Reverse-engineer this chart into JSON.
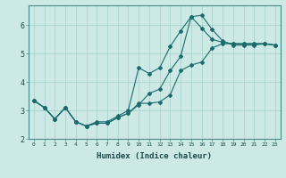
{
  "xlabel": "Humidex (Indice chaleur)",
  "ylabel": "",
  "bg_color": "#cce9e5",
  "line_color": "#1a6b6b",
  "grid_color": "#aad4d0",
  "xlim": [
    -0.5,
    23.5
  ],
  "ylim": [
    2.0,
    6.7
  ],
  "xticks": [
    0,
    1,
    2,
    3,
    4,
    5,
    6,
    7,
    8,
    9,
    10,
    11,
    12,
    13,
    14,
    15,
    16,
    17,
    18,
    19,
    20,
    21,
    22,
    23
  ],
  "yticks": [
    2,
    3,
    4,
    5,
    6
  ],
  "line1_x": [
    0,
    1,
    2,
    3,
    4,
    5,
    6,
    7,
    8,
    9,
    10,
    11,
    12,
    13,
    14,
    15,
    16,
    17,
    18,
    19,
    20,
    21,
    22,
    23
  ],
  "line1_y": [
    3.35,
    3.1,
    2.7,
    3.1,
    2.6,
    2.45,
    2.55,
    2.55,
    2.75,
    2.9,
    3.25,
    3.25,
    3.3,
    3.55,
    4.4,
    4.6,
    4.7,
    5.2,
    5.35,
    5.35,
    5.35,
    5.35,
    5.35,
    5.3
  ],
  "line2_x": [
    0,
    1,
    2,
    3,
    4,
    5,
    6,
    7,
    8,
    9,
    10,
    11,
    12,
    13,
    14,
    15,
    16,
    17,
    18,
    19,
    20,
    21,
    22,
    23
  ],
  "line2_y": [
    3.35,
    3.1,
    2.7,
    3.1,
    2.6,
    2.45,
    2.6,
    2.6,
    2.8,
    3.0,
    4.5,
    4.3,
    4.5,
    5.25,
    5.8,
    6.3,
    6.35,
    5.85,
    5.45,
    5.3,
    5.3,
    5.3,
    5.35,
    5.3
  ],
  "line3_x": [
    0,
    1,
    2,
    3,
    4,
    5,
    6,
    7,
    8,
    9,
    10,
    11,
    12,
    13,
    14,
    15,
    16,
    17,
    18,
    19,
    20,
    21,
    22,
    23
  ],
  "line3_y": [
    3.35,
    3.1,
    2.7,
    3.1,
    2.6,
    2.45,
    2.55,
    2.55,
    2.75,
    2.9,
    3.2,
    3.6,
    3.75,
    4.4,
    4.9,
    6.3,
    5.9,
    5.5,
    5.4,
    5.35,
    5.35,
    5.35,
    5.35,
    5.3
  ]
}
